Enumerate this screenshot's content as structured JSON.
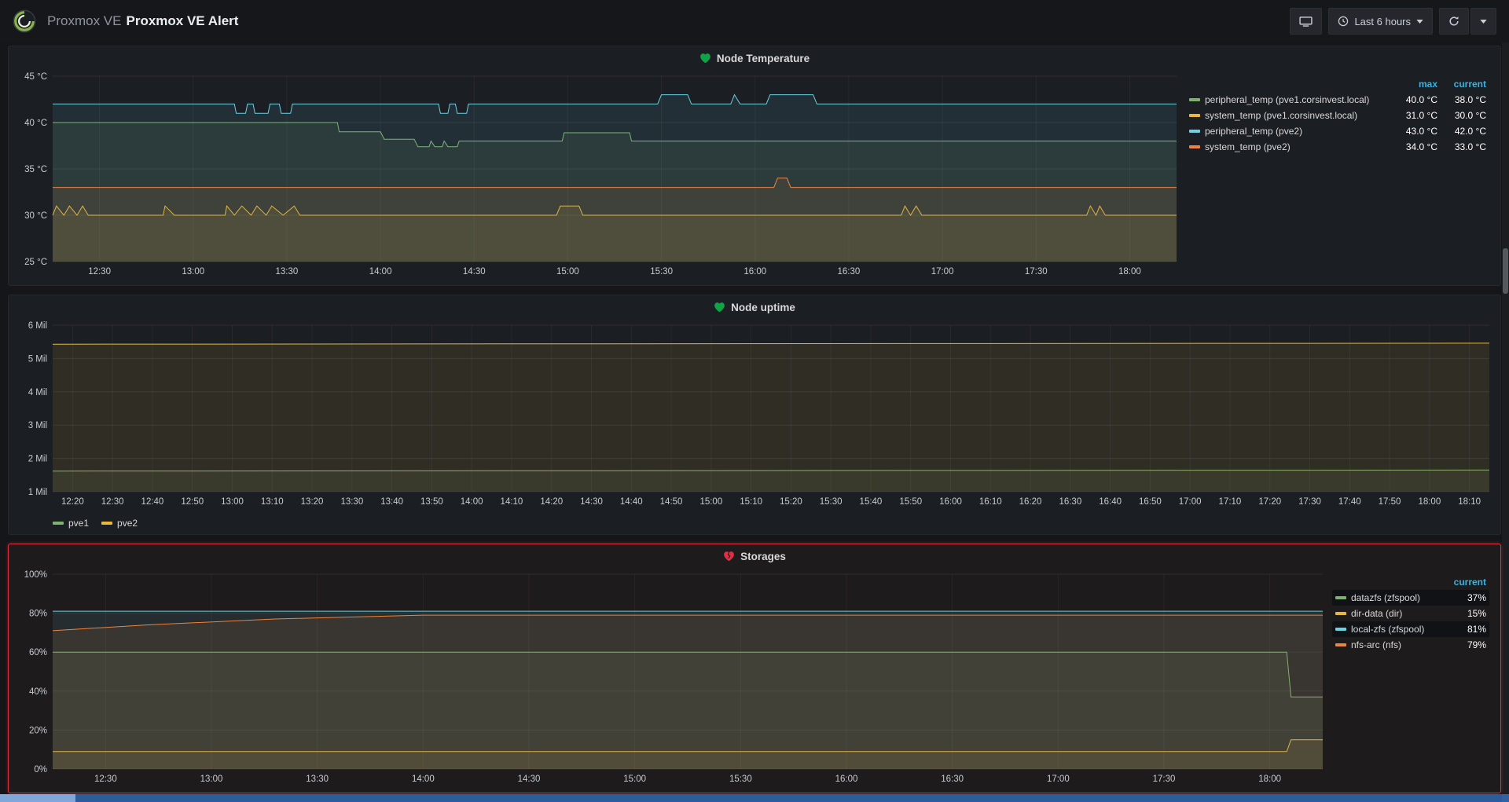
{
  "header": {
    "breadcrumb": "Proxmox VE",
    "title": "Proxmox VE Alert",
    "time_range": "Last 6 hours"
  },
  "colors": {
    "accent_blue": "#33b5e5",
    "alert_red": "#e02f44",
    "ok_green": "#10a345",
    "series_green": "#7EB26D",
    "series_yellow": "#EAB839",
    "series_blue": "#6ED0E0",
    "series_orange": "#EF843C"
  },
  "chart_data": [
    {
      "type": "line",
      "title": "Node Temperature",
      "alert_state": "ok",
      "x_range": [
        12.25,
        18.25
      ],
      "x_ticks": [
        "12:30",
        "13:00",
        "13:30",
        "14:00",
        "14:30",
        "15:00",
        "15:30",
        "16:00",
        "16:30",
        "17:00",
        "17:30",
        "18:00"
      ],
      "y_range": [
        25,
        45
      ],
      "y_ticks": [
        "25 °C",
        "30 °C",
        "35 °C",
        "40 °C",
        "45 °C"
      ],
      "legend": {
        "position": "right",
        "striped": false,
        "columns": [
          "max",
          "current"
        ],
        "rows": [
          {
            "name": "peripheral_temp (pve1.corsinvest.local)",
            "color": "#7EB26D",
            "values": [
              "40.0 °C",
              "38.0 °C"
            ]
          },
          {
            "name": "system_temp (pve1.corsinvest.local)",
            "color": "#EAB839",
            "values": [
              "31.0 °C",
              "30.0 °C"
            ]
          },
          {
            "name": "peripheral_temp (pve2)",
            "color": "#6ED0E0",
            "values": [
              "43.0 °C",
              "42.0 °C"
            ]
          },
          {
            "name": "system_temp (pve2)",
            "color": "#EF843C",
            "values": [
              "34.0 °C",
              "33.0 °C"
            ]
          }
        ]
      },
      "series": [
        {
          "name": "peripheral_temp (pve1.corsinvest.local)",
          "color": "#7EB26D",
          "points": [
            [
              12.25,
              40
            ],
            [
              13.77,
              40
            ],
            [
              13.78,
              39
            ],
            [
              14.0,
              39
            ],
            [
              14.02,
              38.2
            ],
            [
              14.18,
              38.2
            ],
            [
              14.2,
              37.4
            ],
            [
              14.26,
              37.4
            ],
            [
              14.27,
              38
            ],
            [
              14.29,
              37.4
            ],
            [
              14.33,
              37.4
            ],
            [
              14.34,
              38
            ],
            [
              14.36,
              37.4
            ],
            [
              14.41,
              37.4
            ],
            [
              14.42,
              38
            ],
            [
              14.97,
              38
            ],
            [
              14.98,
              38.9
            ],
            [
              15.33,
              38.9
            ],
            [
              15.34,
              38
            ],
            [
              18.25,
              38
            ]
          ]
        },
        {
          "name": "system_temp (pve1.corsinvest.local)",
          "color": "#EAB839",
          "points": [
            [
              12.25,
              30
            ],
            [
              12.27,
              31
            ],
            [
              12.31,
              30
            ],
            [
              12.34,
              31
            ],
            [
              12.38,
              30
            ],
            [
              12.41,
              31
            ],
            [
              12.44,
              30
            ],
            [
              12.84,
              30
            ],
            [
              12.85,
              31
            ],
            [
              12.9,
              30
            ],
            [
              13.17,
              30
            ],
            [
              13.18,
              31
            ],
            [
              13.22,
              30
            ],
            [
              13.26,
              31
            ],
            [
              13.31,
              30
            ],
            [
              13.34,
              31
            ],
            [
              13.39,
              30
            ],
            [
              13.42,
              31
            ],
            [
              13.48,
              30
            ],
            [
              13.54,
              31
            ],
            [
              13.57,
              30
            ],
            [
              14.94,
              30
            ],
            [
              14.96,
              31
            ],
            [
              15.06,
              31
            ],
            [
              15.08,
              30
            ],
            [
              16.78,
              30
            ],
            [
              16.8,
              31
            ],
            [
              16.83,
              30
            ],
            [
              16.86,
              31
            ],
            [
              16.89,
              30
            ],
            [
              17.77,
              30
            ],
            [
              17.79,
              31
            ],
            [
              17.82,
              30
            ],
            [
              17.84,
              31
            ],
            [
              17.87,
              30
            ],
            [
              18.25,
              30
            ]
          ]
        },
        {
          "name": "peripheral_temp (pve2)",
          "color": "#6ED0E0",
          "points": [
            [
              12.25,
              42
            ],
            [
              13.22,
              42
            ],
            [
              13.23,
              41
            ],
            [
              13.28,
              41
            ],
            [
              13.29,
              42
            ],
            [
              13.32,
              42
            ],
            [
              13.33,
              41
            ],
            [
              13.4,
              41
            ],
            [
              13.41,
              42
            ],
            [
              13.46,
              42
            ],
            [
              13.47,
              41
            ],
            [
              13.52,
              41
            ],
            [
              13.53,
              42
            ],
            [
              14.31,
              42
            ],
            [
              14.32,
              41
            ],
            [
              14.36,
              41
            ],
            [
              14.37,
              42
            ],
            [
              14.4,
              42
            ],
            [
              14.41,
              41
            ],
            [
              14.46,
              41
            ],
            [
              14.47,
              42
            ],
            [
              15.48,
              42
            ],
            [
              15.5,
              43
            ],
            [
              15.64,
              43
            ],
            [
              15.66,
              42
            ],
            [
              15.87,
              42
            ],
            [
              15.89,
              43
            ],
            [
              15.92,
              42
            ],
            [
              16.06,
              42
            ],
            [
              16.08,
              43
            ],
            [
              16.31,
              43
            ],
            [
              16.33,
              42
            ],
            [
              18.25,
              42
            ]
          ]
        },
        {
          "name": "system_temp (pve2)",
          "color": "#EF843C",
          "points": [
            [
              12.25,
              33
            ],
            [
              16.1,
              33
            ],
            [
              16.12,
              34
            ],
            [
              16.17,
              34
            ],
            [
              16.19,
              33
            ],
            [
              18.25,
              33
            ]
          ]
        }
      ]
    },
    {
      "type": "line",
      "title": "Node uptime",
      "alert_state": "ok",
      "x_range": [
        12.25,
        18.25
      ],
      "x_ticks": [
        "12:20",
        "12:30",
        "12:40",
        "12:50",
        "13:00",
        "13:10",
        "13:20",
        "13:30",
        "13:40",
        "13:50",
        "14:00",
        "14:10",
        "14:20",
        "14:30",
        "14:40",
        "14:50",
        "15:00",
        "15:10",
        "15:20",
        "15:30",
        "15:40",
        "15:50",
        "16:00",
        "16:10",
        "16:20",
        "16:30",
        "16:40",
        "16:50",
        "17:00",
        "17:10",
        "17:20",
        "17:30",
        "17:40",
        "17:50",
        "18:00",
        "18:10"
      ],
      "y_range": [
        1,
        6
      ],
      "y_ticks": [
        "1 Mil",
        "2 Mil",
        "3 Mil",
        "4 Mil",
        "5 Mil",
        "6 Mil"
      ],
      "legend": {
        "position": "bottom",
        "striped": false,
        "columns": [],
        "rows": [
          {
            "name": "pve1",
            "color": "#7EB26D",
            "values": []
          },
          {
            "name": "pve2",
            "color": "#EAB839",
            "values": []
          }
        ]
      },
      "series": [
        {
          "name": "pve1",
          "color": "#7EB26D",
          "points": [
            [
              12.25,
              1.62
            ],
            [
              18.25,
              1.65
            ]
          ]
        },
        {
          "name": "pve2",
          "color": "#EAB839",
          "points": [
            [
              12.25,
              5.43
            ],
            [
              18.25,
              5.46
            ]
          ]
        }
      ]
    },
    {
      "type": "line",
      "title": "Storages",
      "alert_state": "alerting",
      "x_range": [
        12.25,
        18.25
      ],
      "x_ticks": [
        "12:30",
        "13:00",
        "13:30",
        "14:00",
        "14:30",
        "15:00",
        "15:30",
        "16:00",
        "16:30",
        "17:00",
        "17:30",
        "18:00"
      ],
      "y_range": [
        0,
        100
      ],
      "y_ticks": [
        "0%",
        "20%",
        "40%",
        "60%",
        "80%",
        "100%"
      ],
      "legend": {
        "position": "right",
        "striped": true,
        "columns": [
          "current"
        ],
        "rows": [
          {
            "name": "datazfs (zfspool)",
            "color": "#7EB26D",
            "values": [
              "37%"
            ]
          },
          {
            "name": "dir-data (dir)",
            "color": "#EAB839",
            "values": [
              "15%"
            ]
          },
          {
            "name": "local-zfs (zfspool)",
            "color": "#6ED0E0",
            "values": [
              "81%"
            ]
          },
          {
            "name": "nfs-arc (nfs)",
            "color": "#EF843C",
            "values": [
              "79%"
            ]
          }
        ]
      },
      "series": [
        {
          "name": "datazfs (zfspool)",
          "color": "#7EB26D",
          "points": [
            [
              12.25,
              60
            ],
            [
              18.08,
              60
            ],
            [
              18.1,
              37
            ],
            [
              18.25,
              37
            ]
          ]
        },
        {
          "name": "dir-data (dir)",
          "color": "#EAB839",
          "points": [
            [
              12.25,
              9
            ],
            [
              18.08,
              9
            ],
            [
              18.1,
              15
            ],
            [
              18.25,
              15
            ]
          ]
        },
        {
          "name": "local-zfs (zfspool)",
          "color": "#6ED0E0",
          "points": [
            [
              12.25,
              81
            ],
            [
              18.25,
              81
            ]
          ]
        },
        {
          "name": "nfs-arc (nfs)",
          "color": "#EF843C",
          "points": [
            [
              12.25,
              71
            ],
            [
              12.7,
              74
            ],
            [
              13.3,
              77
            ],
            [
              14.0,
              79
            ],
            [
              18.25,
              79
            ]
          ]
        }
      ]
    }
  ]
}
